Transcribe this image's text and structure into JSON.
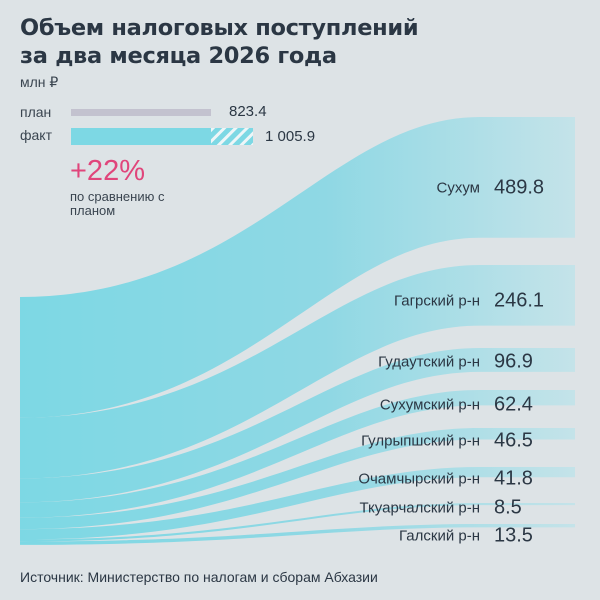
{
  "title_line1": "Объем налоговых поступлений",
  "title_line2": "за два месяца 2026 года",
  "unit": "млн ₽",
  "legend": {
    "plan_label": "план",
    "plan_value": "823.4",
    "fact_label": "факт",
    "fact_value": "1 005.9"
  },
  "comparison": {
    "value": "+22%",
    "text_line1": "по сравнению с",
    "text_line2": "планом"
  },
  "source": "Источник: Министерство по налогам и сборам Абхазии",
  "colors": {
    "band": "#7dd8e4",
    "plan_bar": "#c3c2cf",
    "accent": "#e0457b",
    "background": "#dde3e6"
  },
  "chart_data": {
    "type": "sankey",
    "total": 1005.9,
    "plan": 823.4,
    "categories": [
      "Сухум",
      "Гагрский р-н",
      "Гудаутский р-н",
      "Сухумский р-н",
      "Гулрыпшский р-н",
      "Очамчырский р-н",
      "Ткуарчалский р-н",
      "Галский р-н"
    ],
    "values": [
      489.8,
      246.1,
      96.9,
      62.4,
      46.5,
      41.8,
      8.5,
      13.5
    ],
    "value_labels": [
      "489.8",
      "246.1",
      "96.9",
      "62.4",
      "46.5",
      "41.8",
      "8.5",
      "13.5"
    ]
  }
}
